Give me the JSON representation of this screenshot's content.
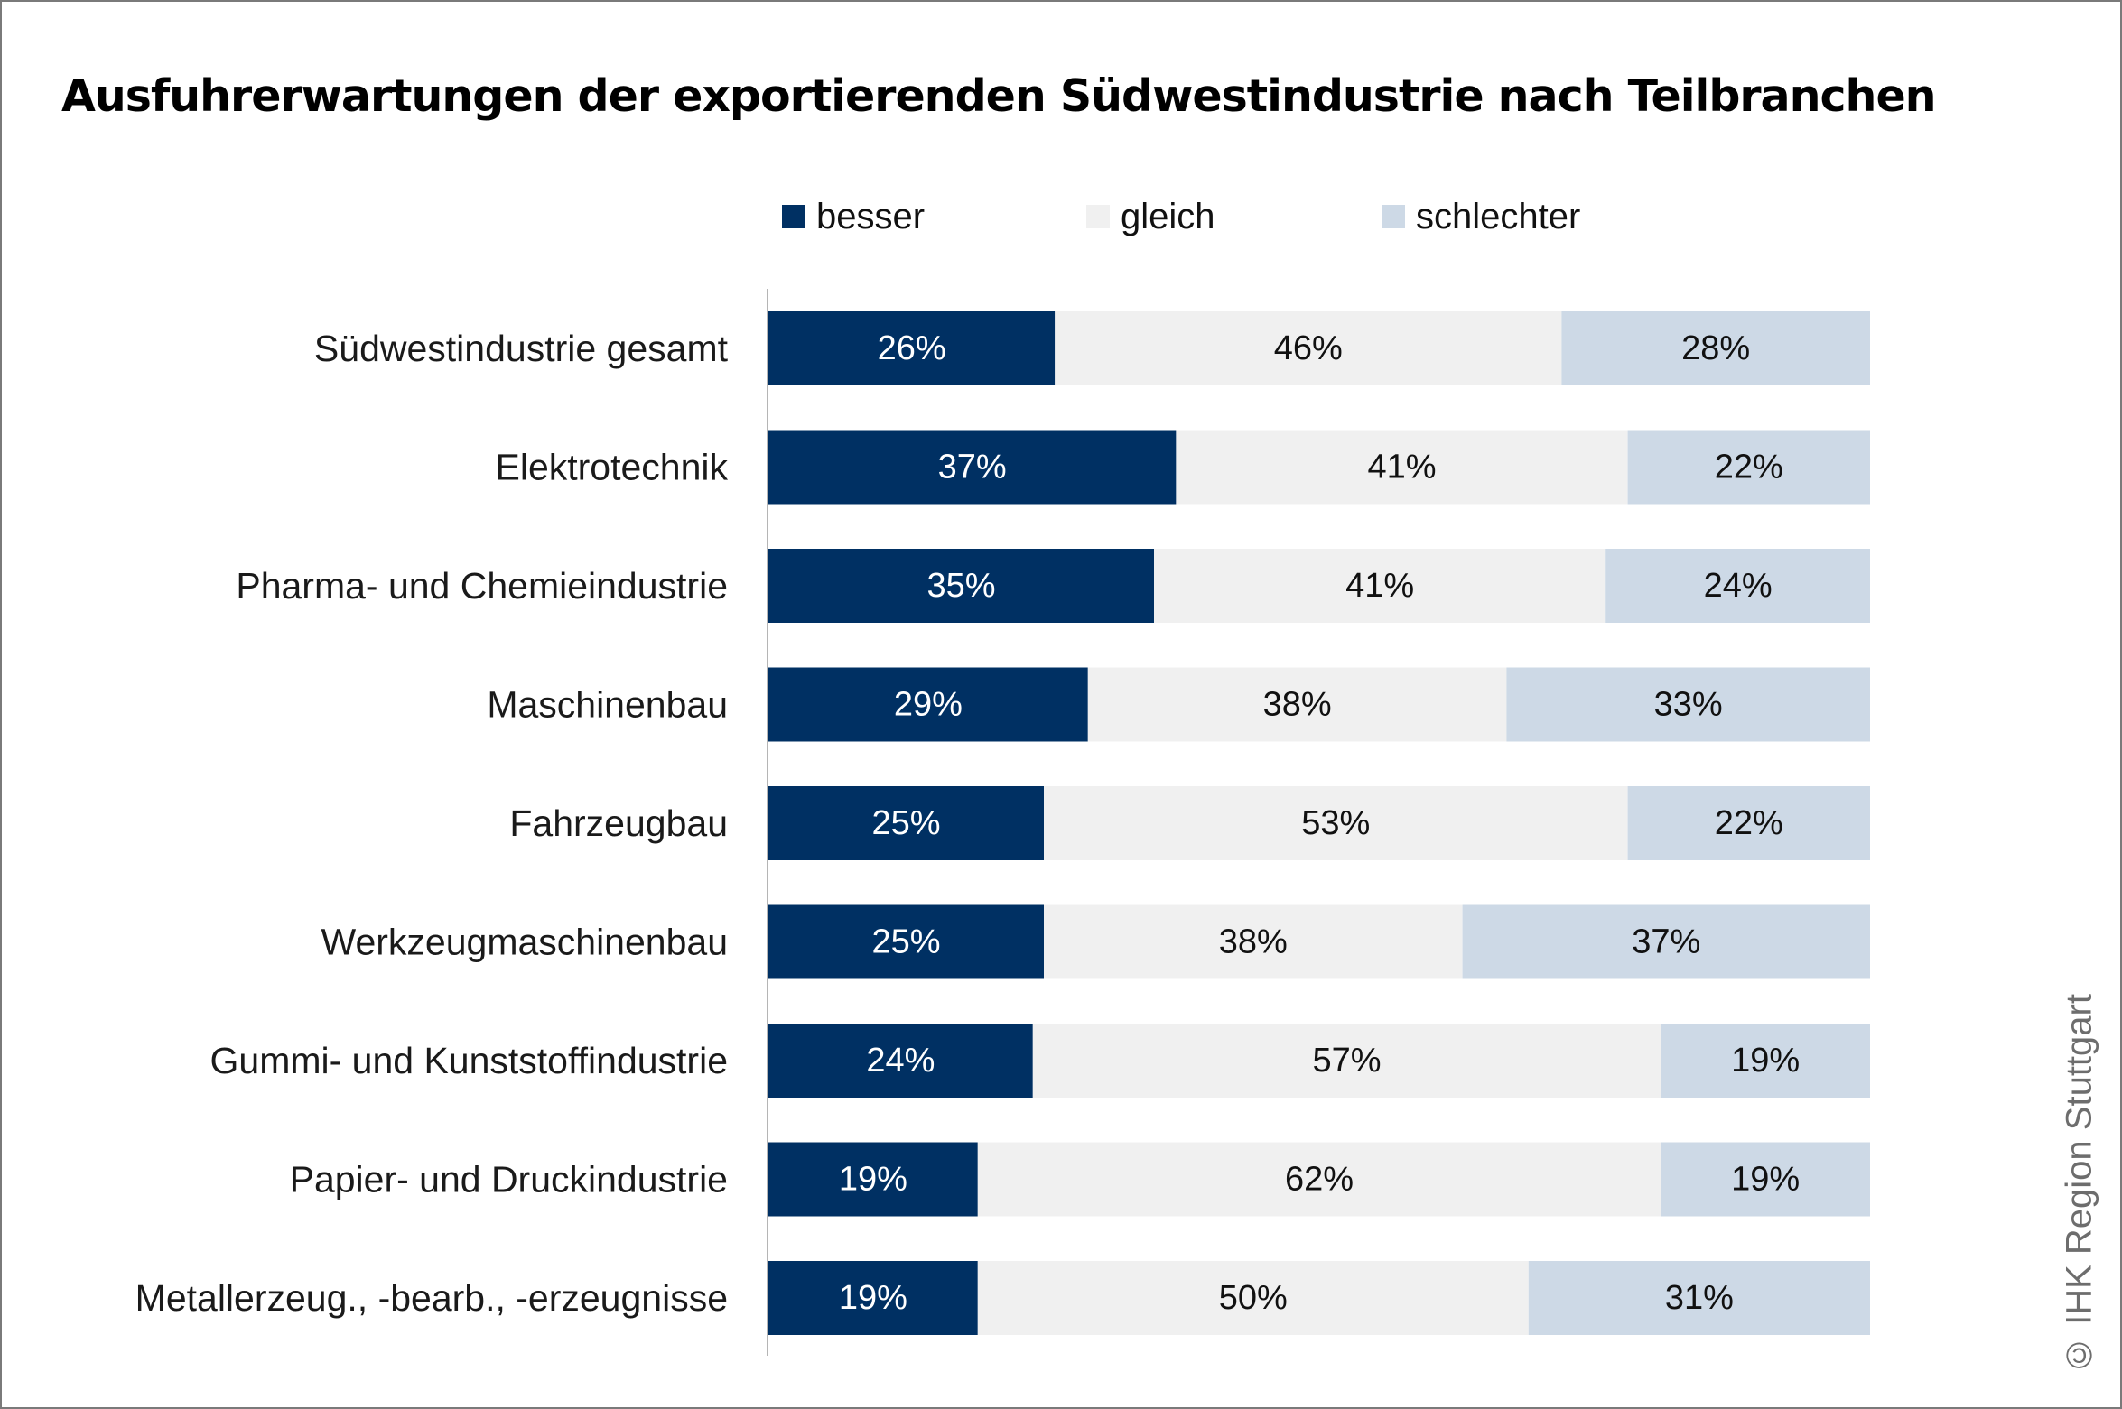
{
  "chart_data": {
    "type": "bar",
    "orientation": "horizontal",
    "stacked": true,
    "title": "Ausfuhrerwartungen der exportierenden Südwestindustrie nach Teilbranchen",
    "categories": [
      "Südwestindustrie gesamt",
      "Elektrotechnik",
      "Pharma- und Chemieindustrie",
      "Maschinenbau",
      "Fahrzeugbau",
      "Werkzeugmaschinenbau",
      "Gummi- und Kunststoffindustrie",
      "Papier- und Druckindustrie",
      "Metallerzeug., -bearb., -erzeugnisse"
    ],
    "series": [
      {
        "name": "besser",
        "color": "#003063",
        "label_color": "#ffffff",
        "values": [
          26,
          37,
          35,
          29,
          25,
          25,
          24,
          19,
          19
        ]
      },
      {
        "name": "gleich",
        "color": "#f0f0f0",
        "label_color": "#111111",
        "values": [
          46,
          41,
          41,
          38,
          53,
          38,
          57,
          62,
          50
        ]
      },
      {
        "name": "schlechter",
        "color": "#cdd9e6",
        "label_color": "#111111",
        "values": [
          28,
          22,
          24,
          33,
          22,
          37,
          19,
          19,
          31
        ]
      }
    ],
    "value_suffix": "%",
    "xlim": [
      0,
      100
    ],
    "xlabel": "",
    "ylabel": "",
    "grid": false,
    "legend_position": "top"
  },
  "copyright": "© IHK Region Stuttgart"
}
